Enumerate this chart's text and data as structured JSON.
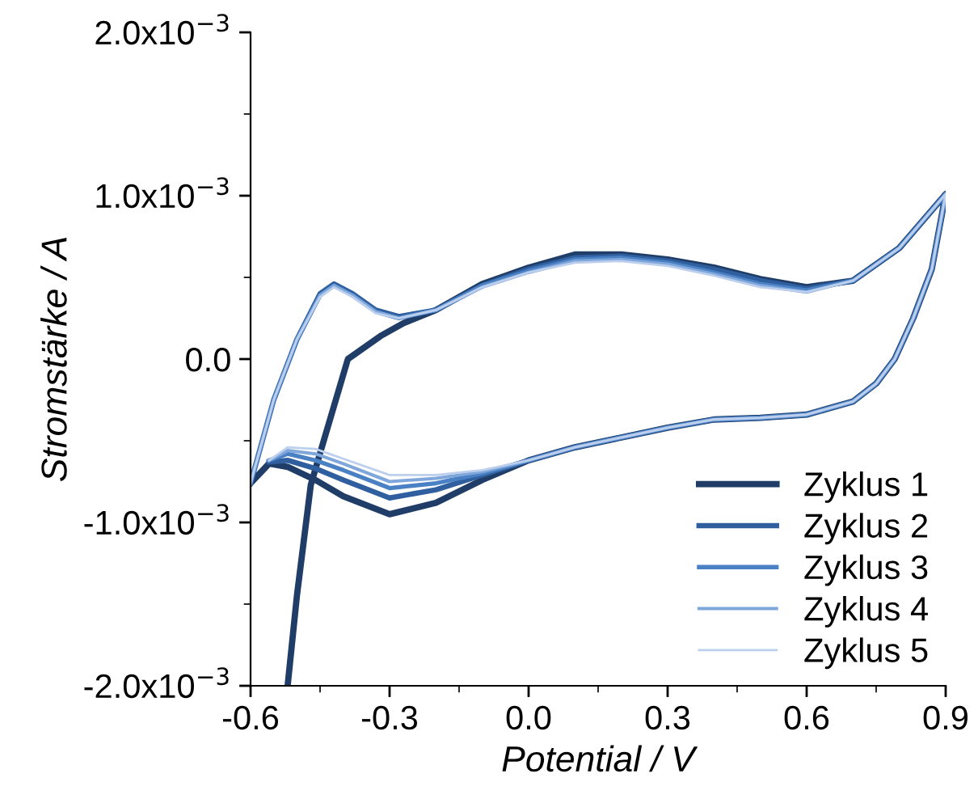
{
  "chart_data": {
    "type": "line",
    "xlabel": "Potential / V",
    "ylabel": "Stromstärke / A",
    "xlim": [
      -0.6,
      0.9
    ],
    "ylim": [
      -0.002,
      0.002
    ],
    "xticks": [
      {
        "value": -0.6,
        "label": "-0.6"
      },
      {
        "value": -0.3,
        "label": "-0.3"
      },
      {
        "value": 0.0,
        "label": "0.0"
      },
      {
        "value": 0.3,
        "label": "0.3"
      },
      {
        "value": 0.6,
        "label": "0.6"
      },
      {
        "value": 0.9,
        "label": "0.9"
      }
    ],
    "yticks": [
      {
        "value": -0.002,
        "label": "-2.0x10$^{−3}$"
      },
      {
        "value": -0.001,
        "label": "-1.0x10$^{−3}$"
      },
      {
        "value": 0.0,
        "label": "0.0"
      },
      {
        "value": 0.001,
        "label": "1.0x10$^{−3}$"
      },
      {
        "value": 0.002,
        "label": "2.0x10$^{−3}$"
      }
    ],
    "grid": false,
    "legend": "bottom right",
    "marker": "none",
    "line_style": "solid",
    "series": [
      {
        "name": "Zyklus 1",
        "color": "#1f3d66",
        "x": [
          -0.52,
          -0.5,
          -0.47,
          -0.44,
          -0.39,
          -0.32,
          -0.27,
          -0.2,
          -0.1,
          0.0,
          0.1,
          0.2,
          0.3,
          0.4,
          0.5,
          0.6,
          0.7,
          0.8,
          0.9,
          0.87,
          0.83,
          0.79,
          0.75,
          0.7,
          0.6,
          0.5,
          0.4,
          0.3,
          0.2,
          0.1,
          0.0,
          -0.1,
          -0.2,
          -0.3,
          -0.4,
          -0.46,
          -0.52,
          -0.56,
          -0.6
        ],
        "values": [
          -0.002,
          -0.00145,
          -0.00077,
          -0.00048,
          0.0,
          0.00014,
          0.00022,
          0.0003,
          0.00046,
          0.00056,
          0.00064,
          0.00064,
          0.00061,
          0.00056,
          0.00049,
          0.00044,
          0.00048,
          0.00068,
          0.00101,
          0.00055,
          0.00025,
          0.0,
          -0.00015,
          -0.00026,
          -0.00034,
          -0.00036,
          -0.00037,
          -0.00042,
          -0.00048,
          -0.00054,
          -0.00062,
          -0.00074,
          -0.00088,
          -0.00095,
          -0.00084,
          -0.00074,
          -0.00066,
          -0.00064,
          -0.00076
        ]
      },
      {
        "name": "Zyklus 2",
        "color": "#2f5f9e",
        "x": [
          -0.6,
          -0.55,
          -0.5,
          -0.45,
          -0.42,
          -0.38,
          -0.33,
          -0.28,
          -0.2,
          -0.1,
          0.0,
          0.1,
          0.2,
          0.3,
          0.4,
          0.5,
          0.6,
          0.7,
          0.8,
          0.9,
          0.87,
          0.83,
          0.79,
          0.75,
          0.7,
          0.6,
          0.5,
          0.4,
          0.3,
          0.2,
          0.1,
          0.0,
          -0.1,
          -0.2,
          -0.3,
          -0.4,
          -0.46,
          -0.52,
          -0.56
        ],
        "values": [
          -0.00076,
          -0.00025,
          0.00012,
          0.0004,
          0.00046,
          0.0004,
          0.0003,
          0.00026,
          0.0003,
          0.00045,
          0.00055,
          0.00062,
          0.00063,
          0.0006,
          0.00055,
          0.00048,
          0.00043,
          0.00048,
          0.00068,
          0.00101,
          0.00055,
          0.00025,
          0.0,
          -0.00015,
          -0.00026,
          -0.00034,
          -0.00036,
          -0.00037,
          -0.00042,
          -0.00048,
          -0.00054,
          -0.00062,
          -0.00071,
          -0.0008,
          -0.00085,
          -0.00074,
          -0.00067,
          -0.00062,
          -0.00063
        ]
      },
      {
        "name": "Zyklus 3",
        "color": "#4a80c4",
        "x": [
          -0.6,
          -0.55,
          -0.5,
          -0.45,
          -0.42,
          -0.38,
          -0.33,
          -0.28,
          -0.2,
          -0.1,
          0.0,
          0.1,
          0.2,
          0.3,
          0.4,
          0.5,
          0.6,
          0.7,
          0.8,
          0.9,
          0.87,
          0.83,
          0.79,
          0.75,
          0.7,
          0.6,
          0.5,
          0.4,
          0.3,
          0.2,
          0.1,
          0.0,
          -0.1,
          -0.2,
          -0.3,
          -0.4,
          -0.46,
          -0.52,
          -0.56
        ],
        "values": [
          -0.00076,
          -0.00025,
          0.00012,
          0.00039,
          0.00045,
          0.00039,
          0.00029,
          0.00025,
          0.0003,
          0.00045,
          0.00054,
          0.00061,
          0.00062,
          0.00059,
          0.00053,
          0.00046,
          0.00042,
          0.00048,
          0.00068,
          0.00101,
          0.00055,
          0.00025,
          0.0,
          -0.00015,
          -0.00026,
          -0.00034,
          -0.00036,
          -0.00037,
          -0.00042,
          -0.00048,
          -0.00054,
          -0.00062,
          -0.0007,
          -0.00076,
          -0.00079,
          -0.00068,
          -0.00062,
          -0.00058,
          -0.00062
        ]
      },
      {
        "name": "Zyklus 4",
        "color": "#7fa7dc",
        "x": [
          -0.6,
          -0.55,
          -0.5,
          -0.45,
          -0.42,
          -0.38,
          -0.33,
          -0.28,
          -0.2,
          -0.1,
          0.0,
          0.1,
          0.2,
          0.3,
          0.4,
          0.5,
          0.6,
          0.7,
          0.8,
          0.9,
          0.87,
          0.83,
          0.79,
          0.75,
          0.7,
          0.6,
          0.5,
          0.4,
          0.3,
          0.2,
          0.1,
          0.0,
          -0.1,
          -0.2,
          -0.3,
          -0.4,
          -0.46,
          -0.52,
          -0.56
        ],
        "values": [
          -0.00076,
          -0.00025,
          0.00012,
          0.00039,
          0.00045,
          0.00039,
          0.00029,
          0.00025,
          0.0003,
          0.00044,
          0.00053,
          0.0006,
          0.00061,
          0.00058,
          0.00052,
          0.00045,
          0.00041,
          0.00048,
          0.00068,
          0.00101,
          0.00055,
          0.00025,
          0.0,
          -0.00015,
          -0.00026,
          -0.00034,
          -0.00036,
          -0.00037,
          -0.00042,
          -0.00048,
          -0.00054,
          -0.00062,
          -0.00069,
          -0.00073,
          -0.00075,
          -0.00064,
          -0.00058,
          -0.00056,
          -0.00062
        ]
      },
      {
        "name": "Zyklus 5",
        "color": "#bccfec",
        "x": [
          -0.6,
          -0.55,
          -0.5,
          -0.45,
          -0.42,
          -0.38,
          -0.33,
          -0.28,
          -0.2,
          -0.1,
          0.0,
          0.1,
          0.2,
          0.3,
          0.4,
          0.5,
          0.6,
          0.7,
          0.8,
          0.9,
          0.87,
          0.83,
          0.79,
          0.75,
          0.7,
          0.6,
          0.5,
          0.4,
          0.3,
          0.2,
          0.1,
          0.0,
          -0.1,
          -0.2,
          -0.3,
          -0.4,
          -0.46,
          -0.52,
          -0.56
        ],
        "values": [
          -0.00076,
          -0.00025,
          0.00012,
          0.00038,
          0.00044,
          0.00038,
          0.00028,
          0.00025,
          0.0003,
          0.00044,
          0.00053,
          0.00059,
          0.0006,
          0.00057,
          0.00051,
          0.00044,
          0.00041,
          0.00048,
          0.00068,
          0.00101,
          0.00055,
          0.00025,
          0.0,
          -0.00015,
          -0.00026,
          -0.00034,
          -0.00036,
          -0.00037,
          -0.00042,
          -0.00048,
          -0.00054,
          -0.00062,
          -0.00068,
          -0.00071,
          -0.00071,
          -0.00061,
          -0.00055,
          -0.00054,
          -0.00062
        ]
      }
    ]
  }
}
